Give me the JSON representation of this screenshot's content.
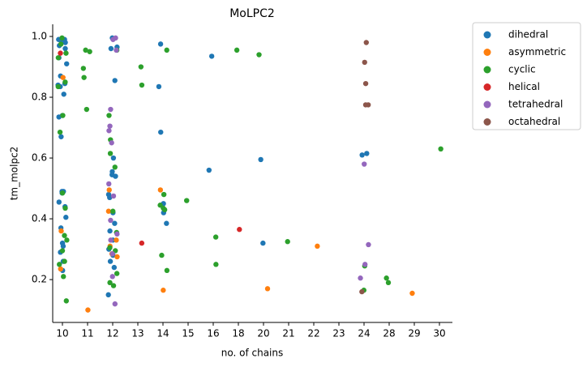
{
  "chart_data": {
    "type": "strip",
    "title": "MoLPC2",
    "xlabel": "no. of chains",
    "ylabel": "tm_molpc2",
    "categories": [
      "10",
      "11",
      "12",
      "13",
      "14",
      "15",
      "16",
      "18",
      "20",
      "21",
      "22",
      "23",
      "24",
      "28",
      "29",
      "30"
    ],
    "ylim": [
      0.059,
      1.04
    ],
    "yticks": [
      0.2,
      0.4,
      0.6,
      0.8,
      {
        "value": 1,
        "label": "1.0"
      }
    ],
    "grid": false,
    "legend": "outside upper right",
    "series": [
      {
        "name": "dihedral",
        "color": "#1f77b4",
        "x": [
          "10",
          "10",
          "10",
          "10",
          "10",
          "10",
          "10",
          "10",
          "10",
          "10",
          "10",
          "10",
          "10",
          "10",
          "10",
          "10",
          "10",
          "10",
          "10",
          "10",
          "10",
          "10",
          "10",
          "10",
          "10",
          "10",
          "10",
          "10",
          "12",
          "12",
          "12",
          "12",
          "12",
          "12",
          "12",
          "12",
          "12",
          "12",
          "12",
          "12",
          "12",
          "12",
          "12",
          "12",
          "12",
          "12",
          "12",
          "14",
          "14",
          "14",
          "14",
          "14",
          "14",
          "16",
          "16",
          "20",
          "20",
          "24",
          "24"
        ],
        "values": [
          0.99,
          0.99,
          0.985,
          0.98,
          0.97,
          0.96,
          0.93,
          0.91,
          0.87,
          0.845,
          0.84,
          0.835,
          0.81,
          0.74,
          0.735,
          0.67,
          0.49,
          0.49,
          0.485,
          0.455,
          0.44,
          0.405,
          0.37,
          0.32,
          0.31,
          0.29,
          0.26,
          0.23,
          0.995,
          0.96,
          0.965,
          0.855,
          0.6,
          0.555,
          0.545,
          0.54,
          0.48,
          0.47,
          0.42,
          0.385,
          0.36,
          0.33,
          0.3,
          0.28,
          0.26,
          0.24,
          0.15,
          0.975,
          0.835,
          0.685,
          0.45,
          0.42,
          0.385,
          0.935,
          0.56,
          0.595,
          0.32,
          0.615,
          0.61
        ]
      },
      {
        "name": "asymmetric",
        "color": "#ff7f0e",
        "x": [
          "10",
          "10",
          "10",
          "11",
          "12",
          "12",
          "12",
          "12",
          "12",
          "12",
          "14",
          "14",
          "20",
          "22",
          "29"
        ],
        "values": [
          0.865,
          0.36,
          0.235,
          0.1,
          0.495,
          0.425,
          0.33,
          0.31,
          0.285,
          0.275,
          0.495,
          0.165,
          0.17,
          0.31,
          0.155
        ]
      },
      {
        "name": "cyclic",
        "color": "#2ca02c",
        "x": [
          "10",
          "10",
          "10",
          "10",
          "10",
          "10",
          "10",
          "10",
          "10",
          "10",
          "10",
          "10",
          "10",
          "10",
          "10",
          "10",
          "10",
          "11",
          "11",
          "11",
          "11",
          "11",
          "12",
          "12",
          "12",
          "12",
          "12",
          "12",
          "12",
          "12",
          "12",
          "12",
          "12",
          "12",
          "13",
          "13",
          "14",
          "14",
          "14",
          "14",
          "14",
          "14",
          "14",
          "15",
          "16",
          "16",
          "18",
          "20",
          "21",
          "24",
          "24",
          "28",
          "28",
          "30"
        ],
        "values": [
          0.995,
          0.975,
          0.945,
          0.93,
          0.85,
          0.835,
          0.74,
          0.685,
          0.485,
          0.435,
          0.345,
          0.33,
          0.295,
          0.26,
          0.25,
          0.21,
          0.13,
          0.955,
          0.95,
          0.895,
          0.865,
          0.76,
          0.955,
          0.74,
          0.66,
          0.615,
          0.57,
          0.425,
          0.355,
          0.305,
          0.295,
          0.22,
          0.19,
          0.18,
          0.9,
          0.84,
          0.955,
          0.48,
          0.445,
          0.435,
          0.43,
          0.28,
          0.23,
          0.46,
          0.34,
          0.25,
          0.955,
          0.94,
          0.325,
          0.245,
          0.165,
          0.205,
          0.19,
          0.63
        ]
      },
      {
        "name": "helical",
        "color": "#d62728",
        "x": [
          "10",
          "13",
          "18"
        ],
        "values": [
          0.945,
          0.32,
          0.365
        ]
      },
      {
        "name": "tetrahedral",
        "color": "#9467bd",
        "x": [
          "12",
          "12",
          "12",
          "12",
          "12",
          "12",
          "12",
          "12",
          "12",
          "12",
          "12",
          "12",
          "12",
          "12",
          "12",
          "24",
          "24",
          "24",
          "24"
        ],
        "values": [
          0.995,
          0.99,
          0.955,
          0.76,
          0.705,
          0.69,
          0.65,
          0.515,
          0.475,
          0.395,
          0.35,
          0.33,
          0.285,
          0.21,
          0.12,
          0.58,
          0.315,
          0.25,
          0.205
        ]
      },
      {
        "name": "octahedral",
        "color": "#8c564b",
        "x": [
          "24",
          "24",
          "24",
          "24",
          "24",
          "24"
        ],
        "values": [
          0.98,
          0.915,
          0.845,
          0.775,
          0.775,
          0.16
        ]
      }
    ]
  }
}
